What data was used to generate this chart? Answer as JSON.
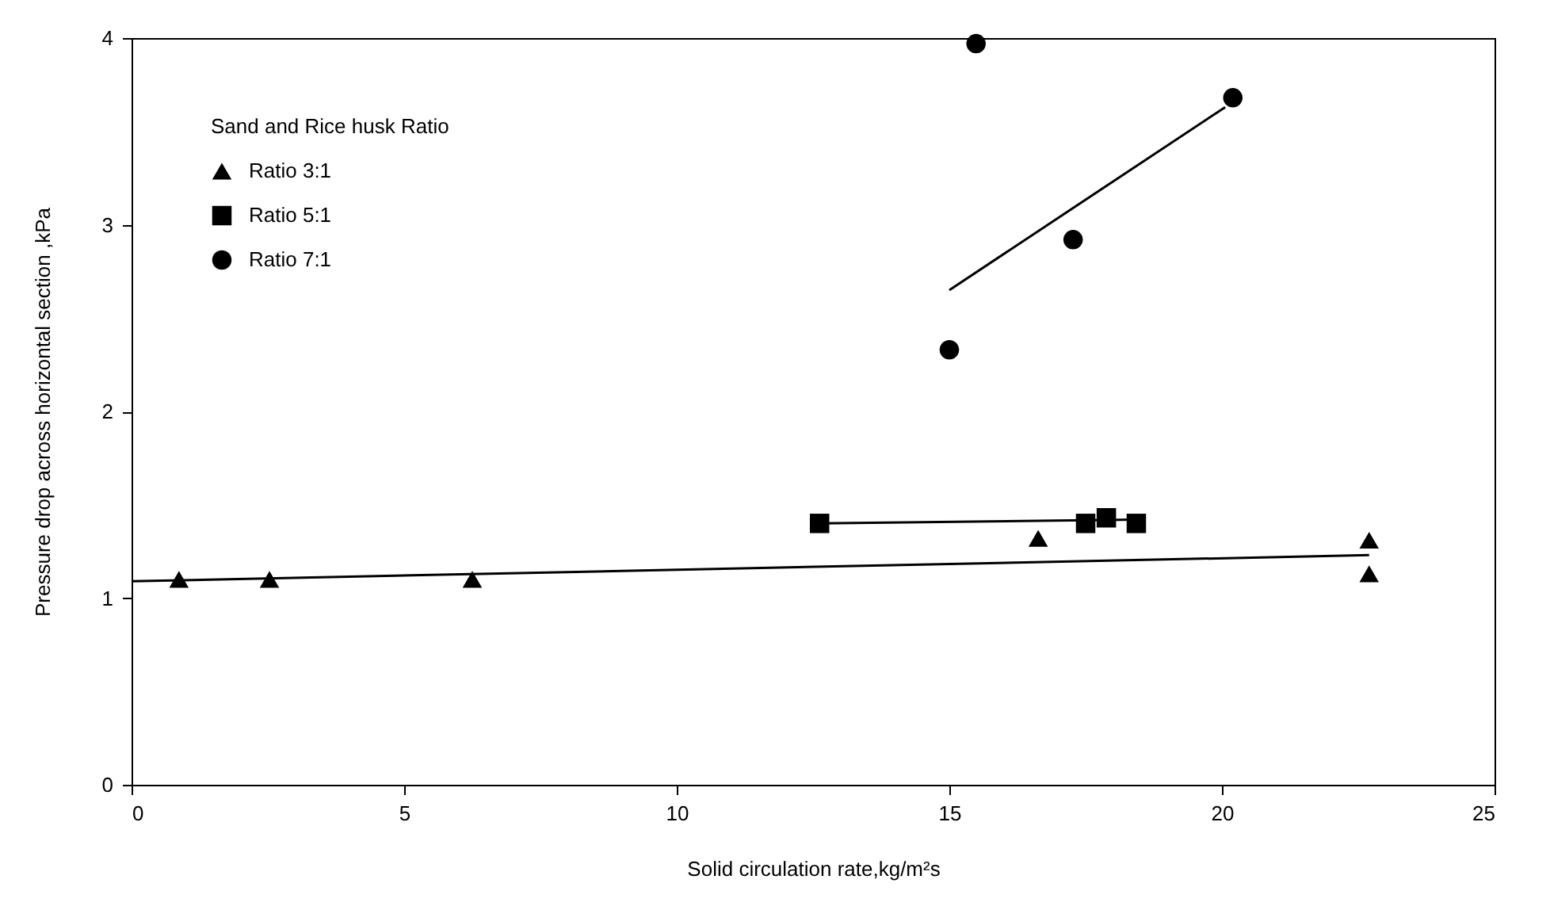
{
  "chart_data": {
    "type": "scatter",
    "xlabel": "Solid circulation rate,kg/m²s",
    "ylabel": "Pressure drop across horizontal section ,kPa",
    "legend_title": "Sand and Rice husk Ratio",
    "legend": "top left",
    "grid": false,
    "xlim": [
      0,
      25
    ],
    "xticks": [
      0,
      5,
      10,
      15,
      20,
      25
    ],
    "ylim": [
      0,
      4
    ],
    "yticks": [
      0,
      1,
      2,
      3,
      4
    ],
    "series": [
      {
        "name": "Ratio 3:1",
        "marker": "triangle",
        "color": "#000000",
        "x": [
          0.87,
          2.53,
          6.25,
          16.63,
          22.7,
          22.7
        ],
        "values": [
          1.1,
          1.1,
          1.1,
          1.32,
          1.31,
          1.13
        ]
      },
      {
        "name": "Ratio 5:1",
        "marker": "square",
        "color": "#000000",
        "x": [
          12.62,
          17.5,
          17.88,
          18.43
        ],
        "values": [
          1.4,
          1.4,
          1.43,
          1.4
        ]
      },
      {
        "name": "Ratio 7:1",
        "marker": "circle",
        "color": "#000000",
        "x": [
          15.0,
          15.49,
          17.27,
          20.2
        ],
        "values": [
          2.33,
          3.97,
          2.92,
          3.68
        ]
      },
      {
        "type": "line",
        "color": "#000000",
        "x": [
          0,
          22.7
        ],
        "values": [
          1.09,
          1.23
        ]
      },
      {
        "type": "line",
        "color": "#000000",
        "x": [
          12.62,
          18.43
        ],
        "values": [
          1.4,
          1.42
        ]
      },
      {
        "type": "line",
        "color": "#000000",
        "x": [
          15.0,
          20.06
        ],
        "values": [
          2.65,
          3.63
        ]
      }
    ]
  }
}
